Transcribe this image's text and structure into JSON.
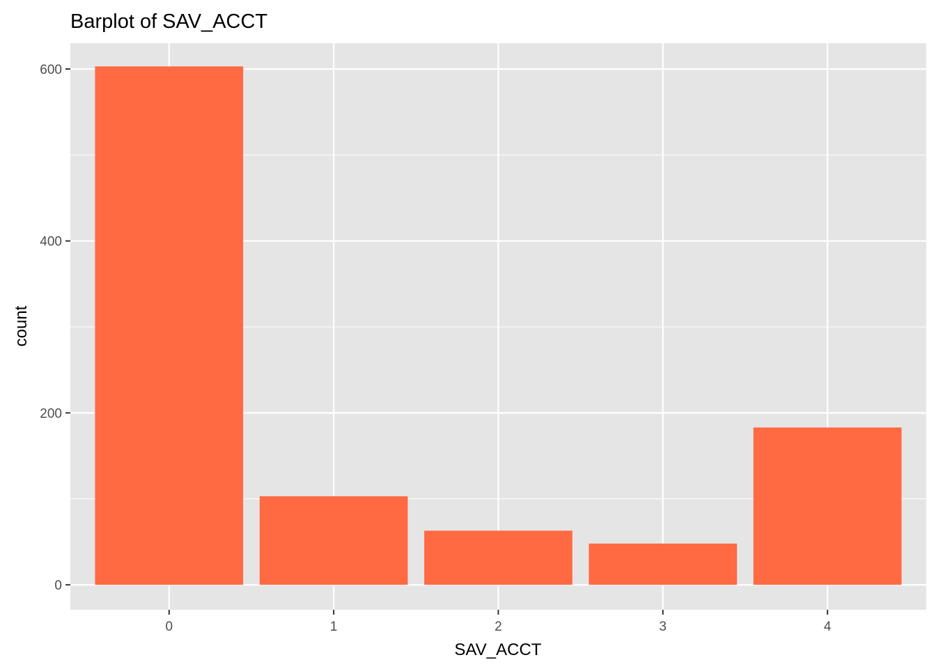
{
  "chart_data": {
    "type": "bar",
    "title": "Barplot of SAV_ACCT",
    "xlabel": "SAV_ACCT",
    "ylabel": "count",
    "categories": [
      "0",
      "1",
      "2",
      "3",
      "4"
    ],
    "values": [
      603,
      103,
      63,
      48,
      183
    ],
    "ylim": [
      -29,
      630
    ],
    "yticks": [
      0,
      200,
      400,
      600
    ],
    "y_minor_ticks": [
      100,
      300,
      500
    ],
    "grid": true,
    "legend": "none",
    "bar_color": "#FF6A43",
    "panel_color": "#E5E5E5",
    "grid_color": "#FFFFFF"
  }
}
